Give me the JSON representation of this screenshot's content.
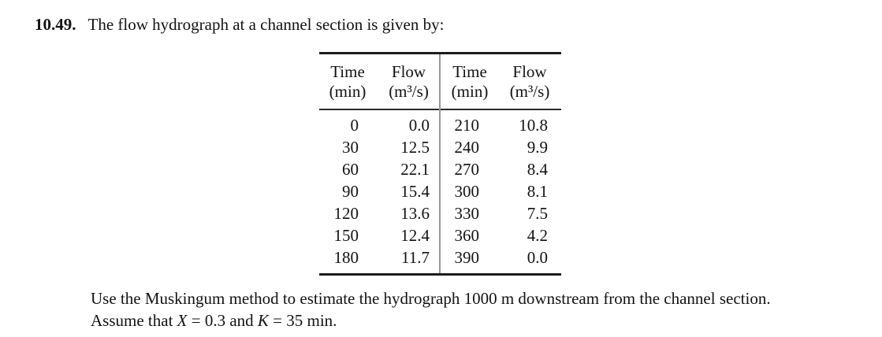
{
  "problem": {
    "number": "10.49.",
    "statement": "The flow hydrograph at a channel section is given by:"
  },
  "table": {
    "headers": [
      {
        "line1": "Time",
        "line2": "(min)"
      },
      {
        "line1": "Flow",
        "line2": "(m³/s)"
      },
      {
        "line1": "Time",
        "line2": "(min)"
      },
      {
        "line1": "Flow",
        "line2": "(m³/s)"
      }
    ],
    "rows": [
      [
        "0",
        "0.0",
        "210",
        "10.8"
      ],
      [
        "30",
        "12.5",
        "240",
        "9.9"
      ],
      [
        "60",
        "22.1",
        "270",
        "8.4"
      ],
      [
        "90",
        "15.4",
        "300",
        "8.1"
      ],
      [
        "120",
        "13.6",
        "330",
        "7.5"
      ],
      [
        "150",
        "12.4",
        "360",
        "4.2"
      ],
      [
        "180",
        "11.7",
        "390",
        "0.0"
      ]
    ]
  },
  "instructions": {
    "line1": "Use the Muskingum method to estimate the hydrograph 1000 m downstream from the channel section.",
    "line2": {
      "pre": "Assume that ",
      "var_x": "X",
      "mid": " = 0.3 and ",
      "var_k": "K",
      "post": " = 35 min."
    }
  }
}
